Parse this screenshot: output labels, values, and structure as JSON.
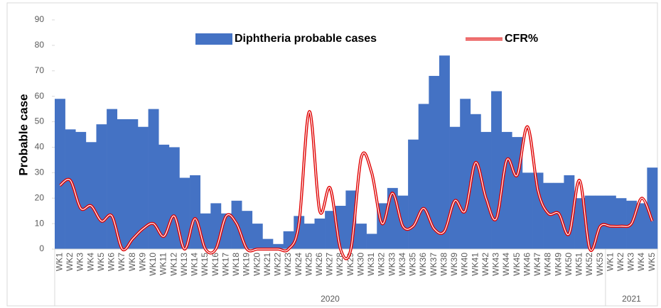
{
  "chart_data": {
    "type": "bar",
    "y_label": "Probable case",
    "ylim": [
      0,
      90
    ],
    "yticks": [
      0,
      10,
      20,
      30,
      40,
      50,
      60,
      70,
      80,
      90
    ],
    "categories": [
      "WK1",
      "WK2",
      "WK3",
      "WK4",
      "WK5",
      "WK6",
      "WK7",
      "WK8",
      "WK9",
      "WK10",
      "WK11",
      "WK12",
      "WK13",
      "WK14",
      "WK15",
      "WK16",
      "WK17",
      "WK18",
      "WK19",
      "WK20",
      "WK21",
      "WK22",
      "WK23",
      "WK24",
      "WK25",
      "WK26",
      "WK27",
      "WK28",
      "WK29",
      "WK30",
      "WK31",
      "WK32",
      "WK33",
      "WK34",
      "WK35",
      "WK36",
      "WK37",
      "WK38",
      "WK39",
      "WK40",
      "WK41",
      "WK42",
      "WK43",
      "WK44",
      "WK45",
      "WK46",
      "WK47",
      "WK48",
      "WK49",
      "WK50",
      "WK51",
      "WK52",
      "WK53",
      "WK1",
      "WK2",
      "WK3",
      "WK4",
      "WK5"
    ],
    "groups": [
      {
        "label": "2020",
        "count": 53
      },
      {
        "label": "2021",
        "count": 5
      }
    ],
    "series": [
      {
        "name": "Diphtheria probable cases",
        "type": "bar",
        "color": "#4472c4",
        "values": [
          59,
          47,
          46,
          42,
          49,
          55,
          51,
          51,
          48,
          55,
          41,
          40,
          28,
          29,
          14,
          18,
          14,
          19,
          15,
          10,
          4,
          2,
          7,
          13,
          10,
          12,
          15,
          17,
          23,
          10,
          6,
          18,
          24,
          21,
          43,
          57,
          68,
          76,
          48,
          59,
          53,
          46,
          62,
          46,
          44,
          30,
          30,
          26,
          26,
          29,
          20,
          21,
          21,
          21,
          20,
          19,
          18,
          32
        ]
      },
      {
        "name": "CFR%",
        "type": "line",
        "color": "#e00000",
        "values": [
          25,
          27,
          16,
          17,
          11,
          13,
          0,
          4,
          8,
          10,
          5,
          13,
          0,
          12,
          0,
          0,
          13,
          10,
          0,
          0,
          0,
          0,
          0,
          10,
          54,
          15,
          24,
          0,
          0,
          36,
          30,
          10,
          22,
          9,
          9,
          16,
          8,
          7,
          19,
          15,
          34,
          20,
          12,
          35,
          29,
          48,
          23,
          14,
          14,
          6,
          27,
          0,
          9,
          9,
          9,
          10,
          20,
          11
        ]
      }
    ]
  }
}
